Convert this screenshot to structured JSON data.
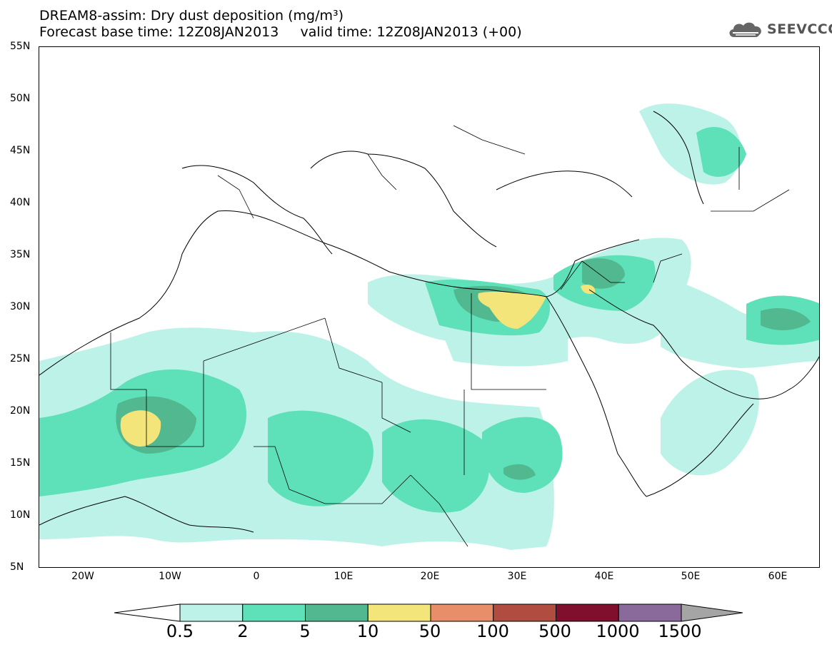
{
  "title": {
    "line1": "DREAM8-assim: Dry dust deposition (mg/m³)",
    "line2": "Forecast base time: 12Z08JAN2013     valid time: 12Z08JAN2013 (+00)"
  },
  "logo": {
    "text": "SEEVCCC",
    "icon": "cloud-icon"
  },
  "axes": {
    "y_ticks": [
      "55N",
      "50N",
      "45N",
      "40N",
      "35N",
      "30N",
      "25N",
      "20N",
      "15N",
      "10N",
      "5N"
    ],
    "x_ticks": [
      "20W",
      "10W",
      "0",
      "10E",
      "20E",
      "30E",
      "40E",
      "50E",
      "60E"
    ]
  },
  "colorbar": {
    "labels": [
      "0.5",
      "2",
      "5",
      "10",
      "50",
      "100",
      "500",
      "1000",
      "1500"
    ],
    "colors": [
      "#bdf2e8",
      "#5ee0b9",
      "#52b890",
      "#f3e57a",
      "#e88e68",
      "#b04d40",
      "#7f0f2c",
      "#8a699b"
    ],
    "under_color": "#ffffff",
    "over_color": "#a5a5a5"
  },
  "map": {
    "region": "Northern Africa, Europe, Middle East",
    "contour_colors": {
      "light": "#bdf2e8",
      "mid": "#5ee0b9",
      "dark": "#52b890",
      "high": "#f3e57a"
    }
  }
}
